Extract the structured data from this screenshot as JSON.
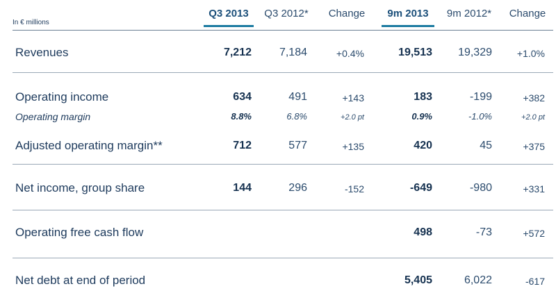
{
  "unit_label": "In € millions",
  "columns": [
    "Q3 2013",
    "Q3 2012*",
    "Change",
    "9m 2013",
    "9m 2012*",
    "Change"
  ],
  "rows": [
    {
      "label": "Revenues",
      "values": [
        "7,212",
        "7,184",
        "+0.4%",
        "19,513",
        "19,329",
        "+1.0%"
      ]
    },
    {
      "label": "Operating income",
      "values": [
        "634",
        "491",
        "+143",
        "183",
        "-199",
        "+382"
      ]
    },
    {
      "label": "Operating margin",
      "values": [
        "8.8%",
        "6.8%",
        "+2.0 pt",
        "0.9%",
        "-1.0%",
        "+2.0 pt"
      ]
    },
    {
      "label": "Adjusted operating margin**",
      "values": [
        "712",
        "577",
        "+135",
        "420",
        "45",
        "+375"
      ]
    },
    {
      "label": "Net income, group share",
      "values": [
        "144",
        "296",
        "-152",
        "-649",
        "-980",
        "+331"
      ]
    },
    {
      "label": "Operating free cash flow",
      "values": [
        "",
        "",
        "",
        "498",
        "-73",
        "+572"
      ]
    },
    {
      "label": "Net debt at end of period",
      "values": [
        "",
        "",
        "",
        "5,405",
        "6,022",
        "-617"
      ]
    }
  ]
}
